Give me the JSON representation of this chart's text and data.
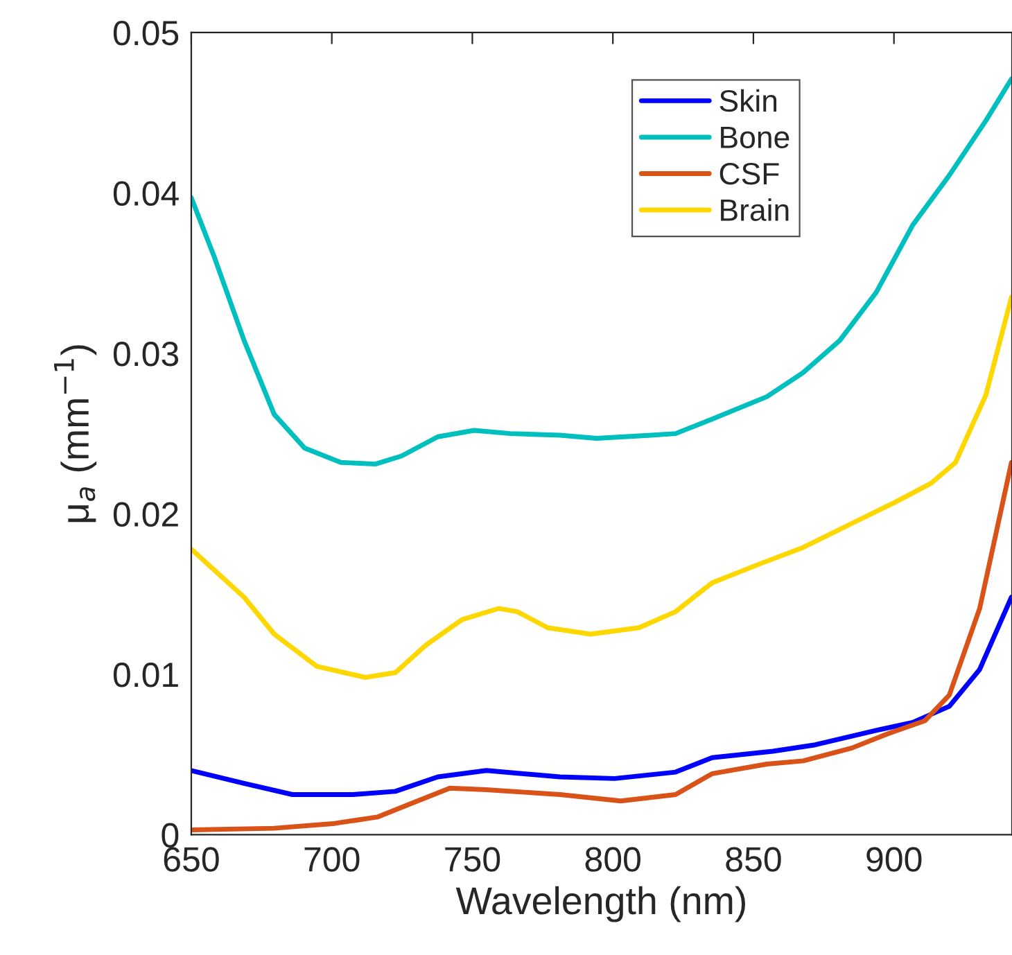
{
  "chart_data": {
    "type": "line",
    "xlabel": "Wavelength (nm)",
    "ylabel": "μ$_{a}$ (mm$^{−1}$)",
    "xlim": [
      650,
      942
    ],
    "xticks": [
      650,
      700,
      750,
      800,
      850,
      900
    ],
    "ylim": [
      0,
      0.05
    ],
    "yticks": [
      0,
      0.01,
      0.02,
      0.03,
      0.04,
      0.05
    ],
    "grid": false,
    "legend": "top right",
    "marker": "none",
    "line_style": "solid",
    "series": [
      {
        "name": "Skin",
        "color": "#0000ff",
        "x": [
          650,
          668.8,
          686,
          707.5,
          722.6,
          737.7,
          755,
          781.2,
          800.6,
          822.3,
          835.3,
          856.9,
          872,
          893.7,
          906.7,
          919.7,
          930.5,
          941.8
        ],
        "values": [
          0.004,
          0.0032,
          0.0025,
          0.0025,
          0.0027,
          0.0036,
          0.004,
          0.0036,
          0.0035,
          0.0039,
          0.0048,
          0.0052,
          0.0056,
          0.0065,
          0.007,
          0.008,
          0.0103,
          0.0148
        ]
      },
      {
        "name": "Bone",
        "color": "#00bfbf",
        "x": [
          650,
          658,
          668.8,
          679.5,
          690.3,
          703.2,
          715.5,
          724.8,
          737.7,
          750.6,
          763.6,
          781.2,
          794.2,
          813.6,
          822.3,
          835.3,
          854.8,
          867.7,
          880.7,
          893.7,
          906.7,
          919.7,
          932.7,
          941.8
        ],
        "values": [
          0.0397,
          0.0361,
          0.0308,
          0.0262,
          0.0241,
          0.0232,
          0.0231,
          0.0236,
          0.0248,
          0.0252,
          0.025,
          0.0249,
          0.0247,
          0.0249,
          0.025,
          0.0259,
          0.0273,
          0.0288,
          0.0308,
          0.0338,
          0.038,
          0.0411,
          0.0445,
          0.0471
        ]
      },
      {
        "name": "CSF",
        "color": "#d95319",
        "x": [
          650,
          679.5,
          701,
          716.2,
          729.1,
          742,
          755,
          781.2,
          802.8,
          822.3,
          835.3,
          854.8,
          867.7,
          885,
          898,
          911,
          919.7,
          930.5,
          941.8
        ],
        "values": [
          0.0003,
          0.0004,
          0.0007,
          0.0011,
          0.002,
          0.0029,
          0.0028,
          0.0025,
          0.0021,
          0.0025,
          0.0038,
          0.0044,
          0.0046,
          0.0054,
          0.0063,
          0.0071,
          0.0087,
          0.0141,
          0.0232
        ]
      },
      {
        "name": "Brain",
        "color": "#ffd700",
        "x": [
          650,
          668.8,
          679.5,
          694.6,
          711.9,
          722.6,
          733.4,
          746.3,
          759.3,
          766,
          776.8,
          792,
          809.3,
          822.3,
          835.3,
          852.6,
          867.7,
          885,
          900.2,
          913.2,
          921.9,
          932.7,
          941.8
        ],
        "values": [
          0.0178,
          0.0148,
          0.0125,
          0.0105,
          0.0098,
          0.0101,
          0.0118,
          0.0134,
          0.0141,
          0.0139,
          0.0129,
          0.0125,
          0.0129,
          0.0139,
          0.0157,
          0.0169,
          0.0179,
          0.0194,
          0.0207,
          0.0219,
          0.0232,
          0.0274,
          0.0335
        ]
      }
    ]
  }
}
